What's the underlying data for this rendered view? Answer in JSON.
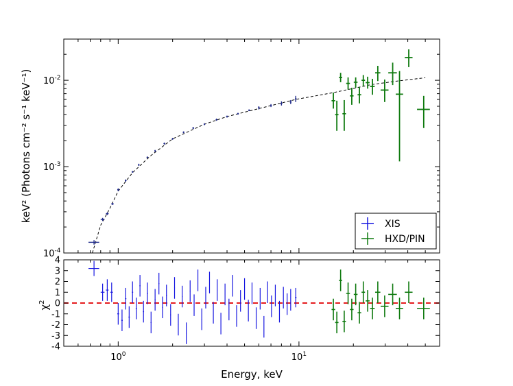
{
  "chart_data": [
    {
      "panel": "spectrum",
      "type": "scatter",
      "xscale": "log",
      "yscale": "log",
      "xlim": [
        0.5,
        60
      ],
      "ylim": [
        0.0001,
        0.03
      ],
      "ylabel": "keV² (Photons cm⁻² s⁻¹ keV⁻¹)",
      "yticks": [
        {
          "value": 0.0001,
          "base": "10",
          "exp": "-4"
        },
        {
          "value": 0.001,
          "base": "10",
          "exp": "-3"
        },
        {
          "value": 0.01,
          "base": "10",
          "exp": "-2"
        }
      ],
      "legend": {
        "placement": "bottom-right",
        "entries": [
          "XIS",
          "HXD/PIN"
        ]
      },
      "series": [
        {
          "name": "XIS",
          "color": "#1f2a8a",
          "points": [
            {
              "x": 0.735,
              "y": 0.000133,
              "xerr": 0.05,
              "ylo": 0.000125,
              "yhi": 0.000141
            },
            {
              "x": 0.82,
              "y": 0.000245,
              "xerr": 0.02,
              "ylo": 0.000235,
              "yhi": 0.000255
            },
            {
              "x": 0.87,
              "y": 0.000285,
              "xerr": 0.015,
              "ylo": 0.000275,
              "yhi": 0.000295
            },
            {
              "x": 0.93,
              "y": 0.00037,
              "xerr": 0.015,
              "ylo": 0.00036,
              "yhi": 0.00038
            },
            {
              "x": 1.0,
              "y": 0.00054,
              "xerr": 0.012,
              "ylo": 0.00052,
              "yhi": 0.00056
            },
            {
              "x": 1.1,
              "y": 0.00069,
              "xerr": 0.012,
              "ylo": 0.00067,
              "yhi": 0.00071
            },
            {
              "x": 1.2,
              "y": 0.00087,
              "xerr": 0.012,
              "ylo": 0.00085,
              "yhi": 0.00089
            },
            {
              "x": 1.3,
              "y": 0.00105,
              "xerr": 0.012,
              "ylo": 0.00102,
              "yhi": 0.00108
            },
            {
              "x": 1.45,
              "y": 0.00128,
              "xerr": 0.015,
              "ylo": 0.00125,
              "yhi": 0.00131
            },
            {
              "x": 1.6,
              "y": 0.00152,
              "xerr": 0.015,
              "ylo": 0.00148,
              "yhi": 0.00156
            },
            {
              "x": 1.8,
              "y": 0.00185,
              "xerr": 0.02,
              "ylo": 0.0018,
              "yhi": 0.0019
            },
            {
              "x": 2.0,
              "y": 0.0021,
              "xerr": 0.02,
              "ylo": 0.00205,
              "yhi": 0.00215
            },
            {
              "x": 2.3,
              "y": 0.0025,
              "xerr": 0.025,
              "ylo": 0.00244,
              "yhi": 0.00256
            },
            {
              "x": 2.6,
              "y": 0.0028,
              "xerr": 0.03,
              "ylo": 0.00273,
              "yhi": 0.00287
            },
            {
              "x": 3.0,
              "y": 0.0031,
              "xerr": 0.03,
              "ylo": 0.00302,
              "yhi": 0.00318
            },
            {
              "x": 3.5,
              "y": 0.0035,
              "xerr": 0.04,
              "ylo": 0.0034,
              "yhi": 0.0036
            },
            {
              "x": 4.0,
              "y": 0.0038,
              "xerr": 0.05,
              "ylo": 0.0037,
              "yhi": 0.0039
            },
            {
              "x": 4.6,
              "y": 0.0041,
              "xerr": 0.05,
              "ylo": 0.004,
              "yhi": 0.0042
            },
            {
              "x": 5.3,
              "y": 0.0045,
              "xerr": 0.06,
              "ylo": 0.0044,
              "yhi": 0.0046
            },
            {
              "x": 6.0,
              "y": 0.0048,
              "xerr": 0.07,
              "ylo": 0.0046,
              "yhi": 0.005
            },
            {
              "x": 7.0,
              "y": 0.0051,
              "xerr": 0.08,
              "ylo": 0.0049,
              "yhi": 0.0053
            },
            {
              "x": 8.0,
              "y": 0.0054,
              "xerr": 0.1,
              "ylo": 0.0051,
              "yhi": 0.0057
            },
            {
              "x": 9.0,
              "y": 0.0056,
              "xerr": 0.1,
              "ylo": 0.0053,
              "yhi": 0.0059
            },
            {
              "x": 9.6,
              "y": 0.0061,
              "xerr": 0.1,
              "ylo": 0.0056,
              "yhi": 0.0066
            }
          ]
        },
        {
          "name": "HXD/PIN",
          "color": "#0f7a0f",
          "points": [
            {
              "x": 15.5,
              "y": 0.0058,
              "xerr": 0.35,
              "ylo": 0.0047,
              "yhi": 0.0072
            },
            {
              "x": 16.2,
              "y": 0.004,
              "xerr": 0.35,
              "ylo": 0.0026,
              "yhi": 0.0058
            },
            {
              "x": 17.0,
              "y": 0.0108,
              "xerr": 0.35,
              "ylo": 0.0095,
              "yhi": 0.0122
            },
            {
              "x": 17.8,
              "y": 0.0041,
              "xerr": 0.4,
              "ylo": 0.0026,
              "yhi": 0.0059
            },
            {
              "x": 18.7,
              "y": 0.0092,
              "xerr": 0.45,
              "ylo": 0.0078,
              "yhi": 0.0108
            },
            {
              "x": 19.6,
              "y": 0.0066,
              "xerr": 0.45,
              "ylo": 0.0052,
              "yhi": 0.0082
            },
            {
              "x": 20.6,
              "y": 0.0095,
              "xerr": 0.5,
              "ylo": 0.0082,
              "yhi": 0.0108
            },
            {
              "x": 21.6,
              "y": 0.0068,
              "xerr": 0.5,
              "ylo": 0.0054,
              "yhi": 0.0084
            },
            {
              "x": 22.7,
              "y": 0.01,
              "xerr": 0.5,
              "ylo": 0.0085,
              "yhi": 0.0115
            },
            {
              "x": 24.0,
              "y": 0.0094,
              "xerr": 0.6,
              "ylo": 0.008,
              "yhi": 0.011
            },
            {
              "x": 25.5,
              "y": 0.0085,
              "xerr": 0.75,
              "ylo": 0.0068,
              "yhi": 0.0104
            },
            {
              "x": 27.3,
              "y": 0.0122,
              "xerr": 0.9,
              "ylo": 0.0098,
              "yhi": 0.0147
            },
            {
              "x": 29.8,
              "y": 0.0077,
              "xerr": 1.5,
              "ylo": 0.0056,
              "yhi": 0.0102
            },
            {
              "x": 33.0,
              "y": 0.0122,
              "xerr": 1.8,
              "ylo": 0.0088,
              "yhi": 0.016
            },
            {
              "x": 36.0,
              "y": 0.0069,
              "xerr": 1.7,
              "ylo": 0.00115,
              "yhi": 0.0128
            },
            {
              "x": 40.5,
              "y": 0.0183,
              "xerr": 2.0,
              "ylo": 0.0142,
              "yhi": 0.0228
            },
            {
              "x": 49.0,
              "y": 0.0046,
              "xerr": 4.0,
              "ylo": 0.0028,
              "yhi": 0.0066
            }
          ]
        }
      ],
      "model": {
        "style": "dashed",
        "color": "#000000",
        "points": [
          {
            "x": 0.72,
            "y": 0.0001
          },
          {
            "x": 0.8,
            "y": 0.00021
          },
          {
            "x": 0.9,
            "y": 0.00033
          },
          {
            "x": 1.0,
            "y": 0.00052
          },
          {
            "x": 1.2,
            "y": 0.00085
          },
          {
            "x": 1.5,
            "y": 0.00132
          },
          {
            "x": 2.0,
            "y": 0.0021
          },
          {
            "x": 3.0,
            "y": 0.0031
          },
          {
            "x": 4.0,
            "y": 0.0038
          },
          {
            "x": 6.0,
            "y": 0.0047
          },
          {
            "x": 9.6,
            "y": 0.006
          },
          {
            "x": 15.5,
            "y": 0.0072
          },
          {
            "x": 25.0,
            "y": 0.0089
          },
          {
            "x": 35.0,
            "y": 0.0098
          },
          {
            "x": 50.0,
            "y": 0.0107
          }
        ]
      }
    },
    {
      "panel": "residuals",
      "type": "scatter",
      "xscale": "log",
      "xlim": [
        0.5,
        60
      ],
      "ylim": [
        -4,
        4
      ],
      "yticks": [
        "-4",
        "-3",
        "-2",
        "-1",
        "0",
        "1",
        "2",
        "3",
        "4"
      ],
      "ylabel": "χ",
      "ylabel_sup": "2",
      "xlabel": "Energy, keV",
      "xticks": [
        {
          "value": 1,
          "base": "10",
          "exp": "0"
        },
        {
          "value": 10,
          "base": "10",
          "exp": "1"
        }
      ],
      "reference_line": {
        "y": 0,
        "style": "dashed",
        "color": "#e41a1c"
      },
      "series": [
        {
          "name": "XIS",
          "color": "#1515e0",
          "points": [
            {
              "x": 0.735,
              "y": 3.2,
              "xerr": 0.05,
              "err": 0.7
            },
            {
              "x": 0.82,
              "y": 1.0,
              "xerr": 0.02,
              "err": 0.8
            },
            {
              "x": 0.87,
              "y": 1.2,
              "xerr": 0.015,
              "err": 1.0
            },
            {
              "x": 0.92,
              "y": 1.0,
              "xerr": 0.015,
              "err": 0.9
            },
            {
              "x": 1.0,
              "y": -1.0,
              "xerr": 0.012,
              "err": 1.0
            },
            {
              "x": 1.05,
              "y": -1.6,
              "xerr": 0.01,
              "err": 1.0
            },
            {
              "x": 1.1,
              "y": 0.4,
              "xerr": 0.01,
              "err": 1.0
            },
            {
              "x": 1.15,
              "y": -1.3,
              "xerr": 0.01,
              "err": 1.0
            },
            {
              "x": 1.2,
              "y": 1.0,
              "xerr": 0.01,
              "err": 1.0
            },
            {
              "x": 1.26,
              "y": -0.5,
              "xerr": 0.01,
              "err": 1.0
            },
            {
              "x": 1.32,
              "y": 1.6,
              "xerr": 0.01,
              "err": 1.0
            },
            {
              "x": 1.38,
              "y": -0.8,
              "xerr": 0.01,
              "err": 1.0
            },
            {
              "x": 1.45,
              "y": 0.9,
              "xerr": 0.01,
              "err": 1.0
            },
            {
              "x": 1.52,
              "y": -1.8,
              "xerr": 0.01,
              "err": 1.0
            },
            {
              "x": 1.6,
              "y": 0.3,
              "xerr": 0.01,
              "err": 1.0
            },
            {
              "x": 1.68,
              "y": 1.8,
              "xerr": 0.01,
              "err": 1.0
            },
            {
              "x": 1.76,
              "y": -0.4,
              "xerr": 0.01,
              "err": 1.0
            },
            {
              "x": 1.85,
              "y": 0.7,
              "xerr": 0.01,
              "err": 1.0
            },
            {
              "x": 1.95,
              "y": -1.1,
              "xerr": 0.01,
              "err": 1.0
            },
            {
              "x": 2.05,
              "y": 1.4,
              "xerr": 0.01,
              "err": 1.0
            },
            {
              "x": 2.15,
              "y": -2.0,
              "xerr": 0.01,
              "err": 1.0
            },
            {
              "x": 2.26,
              "y": 0.6,
              "xerr": 0.01,
              "err": 1.0
            },
            {
              "x": 2.38,
              "y": -2.8,
              "xerr": 0.01,
              "err": 1.0
            },
            {
              "x": 2.5,
              "y": 1.1,
              "xerr": 0.01,
              "err": 1.0
            },
            {
              "x": 2.63,
              "y": -0.2,
              "xerr": 0.01,
              "err": 1.0
            },
            {
              "x": 2.76,
              "y": 2.1,
              "xerr": 0.01,
              "err": 1.0
            },
            {
              "x": 2.9,
              "y": -1.5,
              "xerr": 0.01,
              "err": 1.0
            },
            {
              "x": 3.05,
              "y": 0.5,
              "xerr": 0.01,
              "err": 1.0
            },
            {
              "x": 3.2,
              "y": 1.9,
              "xerr": 0.01,
              "err": 1.0
            },
            {
              "x": 3.36,
              "y": -0.9,
              "xerr": 0.01,
              "err": 1.0
            },
            {
              "x": 3.53,
              "y": 1.2,
              "xerr": 0.01,
              "err": 1.0
            },
            {
              "x": 3.7,
              "y": -1.9,
              "xerr": 0.01,
              "err": 1.0
            },
            {
              "x": 3.9,
              "y": 0.8,
              "xerr": 0.01,
              "err": 1.0
            },
            {
              "x": 4.1,
              "y": -0.6,
              "xerr": 0.01,
              "err": 1.0
            },
            {
              "x": 4.3,
              "y": 1.6,
              "xerr": 0.01,
              "err": 1.0
            },
            {
              "x": 4.52,
              "y": -1.2,
              "xerr": 0.01,
              "err": 1.0
            },
            {
              "x": 4.75,
              "y": 0.2,
              "xerr": 0.01,
              "err": 1.0
            },
            {
              "x": 5.0,
              "y": 1.3,
              "xerr": 0.01,
              "err": 1.0
            },
            {
              "x": 5.25,
              "y": -0.7,
              "xerr": 0.01,
              "err": 1.0
            },
            {
              "x": 5.5,
              "y": 0.9,
              "xerr": 0.01,
              "err": 1.0
            },
            {
              "x": 5.8,
              "y": -1.4,
              "xerr": 0.01,
              "err": 1.0
            },
            {
              "x": 6.1,
              "y": 0.4,
              "xerr": 0.01,
              "err": 1.0
            },
            {
              "x": 6.4,
              "y": -2.2,
              "xerr": 0.01,
              "err": 1.0
            },
            {
              "x": 6.7,
              "y": 1.0,
              "xerr": 0.01,
              "err": 1.0
            },
            {
              "x": 7.05,
              "y": -0.3,
              "xerr": 0.01,
              "err": 1.0
            },
            {
              "x": 7.4,
              "y": 0.7,
              "xerr": 0.01,
              "err": 1.0
            },
            {
              "x": 7.8,
              "y": -0.8,
              "xerr": 0.01,
              "err": 1.0
            },
            {
              "x": 8.2,
              "y": 0.5,
              "xerr": 0.01,
              "err": 1.0
            },
            {
              "x": 8.6,
              "y": -0.1,
              "xerr": 0.01,
              "err": 1.0
            },
            {
              "x": 9.0,
              "y": 0.3,
              "xerr": 0.01,
              "err": 1.0
            },
            {
              "x": 9.6,
              "y": 0.5,
              "xerr": 0.1,
              "err": 0.9
            }
          ]
        },
        {
          "name": "HXD/PIN",
          "color": "#0f7a0f",
          "points": [
            {
              "x": 15.5,
              "y": -0.6,
              "xerr": 0.35,
              "err": 1.0
            },
            {
              "x": 16.2,
              "y": -1.8,
              "xerr": 0.35,
              "err": 1.0
            },
            {
              "x": 17.0,
              "y": 2.1,
              "xerr": 0.35,
              "err": 1.0
            },
            {
              "x": 17.8,
              "y": -1.7,
              "xerr": 0.4,
              "err": 1.0
            },
            {
              "x": 18.7,
              "y": 0.9,
              "xerr": 0.45,
              "err": 1.0
            },
            {
              "x": 19.6,
              "y": -0.6,
              "xerr": 0.45,
              "err": 1.0
            },
            {
              "x": 20.6,
              "y": 0.8,
              "xerr": 0.5,
              "err": 1.0
            },
            {
              "x": 21.6,
              "y": -0.9,
              "xerr": 0.5,
              "err": 1.0
            },
            {
              "x": 22.7,
              "y": 1.0,
              "xerr": 0.5,
              "err": 1.0
            },
            {
              "x": 24.0,
              "y": 0.2,
              "xerr": 0.6,
              "err": 1.0
            },
            {
              "x": 25.5,
              "y": -0.5,
              "xerr": 0.75,
              "err": 1.0
            },
            {
              "x": 27.3,
              "y": 1.0,
              "xerr": 0.9,
              "err": 1.0
            },
            {
              "x": 29.8,
              "y": -0.3,
              "xerr": 1.5,
              "err": 1.0
            },
            {
              "x": 33.0,
              "y": 0.8,
              "xerr": 1.8,
              "err": 1.0
            },
            {
              "x": 36.0,
              "y": -0.5,
              "xerr": 1.7,
              "err": 1.0
            },
            {
              "x": 40.5,
              "y": 1.0,
              "xerr": 2.0,
              "err": 1.0
            },
            {
              "x": 49.0,
              "y": -0.5,
              "xerr": 4.0,
              "err": 1.0
            }
          ]
        }
      ]
    }
  ]
}
